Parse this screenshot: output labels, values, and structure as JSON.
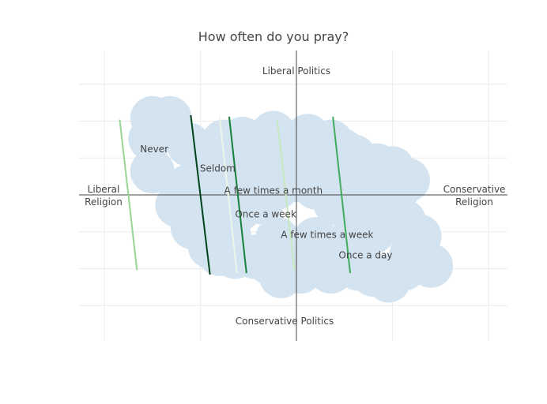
{
  "chart_data": {
    "type": "scatter",
    "title": "How often do you pray?",
    "xlim": [
      -1,
      1
    ],
    "ylim": [
      -1,
      1
    ],
    "grid": true,
    "axis_labels": {
      "top": "Liberal Politics",
      "bottom": "Conservative Politics",
      "left": [
        "Liberal",
        "Religion"
      ],
      "right": [
        "Conservative",
        "Religion"
      ]
    },
    "cloud_color": "#d3e3f0",
    "cloud_points": [
      [
        -0.75,
        0.52
      ],
      [
        -0.66,
        0.52
      ],
      [
        -0.76,
        0.38
      ],
      [
        -0.75,
        0.16
      ],
      [
        -0.56,
        0.34
      ],
      [
        -0.56,
        0.06
      ],
      [
        -0.62,
        -0.07
      ],
      [
        -0.54,
        -0.22
      ],
      [
        -0.38,
        0.36
      ],
      [
        -0.34,
        0.17
      ],
      [
        -0.28,
        0.38
      ],
      [
        -0.28,
        0.1
      ],
      [
        -0.22,
        0.34
      ],
      [
        -0.16,
        0.38
      ],
      [
        -0.12,
        0.42
      ],
      [
        -0.08,
        0.3
      ],
      [
        -0.02,
        0.32
      ],
      [
        0.06,
        0.4
      ],
      [
        0.1,
        0.34
      ],
      [
        0.18,
        0.36
      ],
      [
        0.24,
        0.3
      ],
      [
        0.3,
        0.26
      ],
      [
        0.42,
        0.2
      ],
      [
        0.5,
        0.18
      ],
      [
        0.58,
        0.1
      ],
      [
        0.52,
        0.02
      ],
      [
        0.56,
        -0.18
      ],
      [
        0.64,
        -0.28
      ],
      [
        0.64,
        -0.44
      ],
      [
        0.6,
        -0.4
      ],
      [
        0.7,
        -0.48
      ],
      [
        0.56,
        -0.5
      ],
      [
        0.48,
        -0.58
      ],
      [
        0.4,
        -0.54
      ],
      [
        0.32,
        -0.5
      ],
      [
        0.24,
        -0.48
      ],
      [
        0.18,
        -0.52
      ],
      [
        0.1,
        -0.48
      ],
      [
        0.02,
        -0.52
      ],
      [
        -0.08,
        -0.55
      ],
      [
        -0.14,
        -0.46
      ],
      [
        -0.22,
        -0.42
      ],
      [
        -0.32,
        -0.42
      ],
      [
        -0.4,
        -0.4
      ],
      [
        -0.45,
        -0.35
      ],
      [
        -0.4,
        -0.15
      ],
      [
        -0.3,
        -0.1
      ],
      [
        -0.18,
        -0.05
      ],
      [
        -0.1,
        0.05
      ],
      [
        0.0,
        0.1
      ],
      [
        0.1,
        0.05
      ],
      [
        0.2,
        -0.05
      ],
      [
        0.3,
        -0.15
      ],
      [
        0.4,
        -0.25
      ],
      [
        0.45,
        -0.1
      ],
      [
        0.35,
        0.05
      ],
      [
        0.2,
        0.2
      ],
      [
        -0.05,
        0.2
      ],
      [
        -0.2,
        0.22
      ],
      [
        -0.45,
        0.2
      ],
      [
        -0.48,
        0.0
      ],
      [
        -0.35,
        -0.28
      ],
      [
        -0.1,
        -0.3
      ],
      [
        0.1,
        -0.3
      ],
      [
        0.25,
        -0.35
      ]
    ],
    "series": [
      {
        "name": "Never",
        "color": "#98d594",
        "line": [
          [
            -0.92,
            0.51
          ],
          [
            -0.83,
            -0.51
          ]
        ],
        "label_at": [
          -0.74,
          0.31
        ]
      },
      {
        "name": "Seldom",
        "color": "#00441b",
        "line": [
          [
            -0.55,
            0.54
          ],
          [
            -0.45,
            -0.54
          ]
        ],
        "label_at": [
          -0.41,
          0.18
        ]
      },
      {
        "name": "A few times a month",
        "color": "#ebf6e8",
        "line": [
          [
            -0.4,
            0.53
          ],
          [
            -0.31,
            -0.53
          ]
        ],
        "label_at": [
          -0.12,
          0.03
        ]
      },
      {
        "name": "Once a week",
        "color": "#18803b",
        "line": [
          [
            -0.35,
            0.53
          ],
          [
            -0.26,
            -0.53
          ]
        ],
        "label_at": [
          -0.16,
          -0.13
        ]
      },
      {
        "name": "A few times a week",
        "color": "#c7e9c0",
        "line": [
          [
            -0.1,
            0.51
          ],
          [
            -0.01,
            -0.51
          ]
        ],
        "label_at": [
          0.16,
          -0.27
        ]
      },
      {
        "name": "Once a day",
        "color": "#42ab5d",
        "line": [
          [
            0.19,
            0.53
          ],
          [
            0.28,
            -0.53
          ]
        ],
        "label_at": [
          0.36,
          -0.41
        ]
      }
    ]
  }
}
